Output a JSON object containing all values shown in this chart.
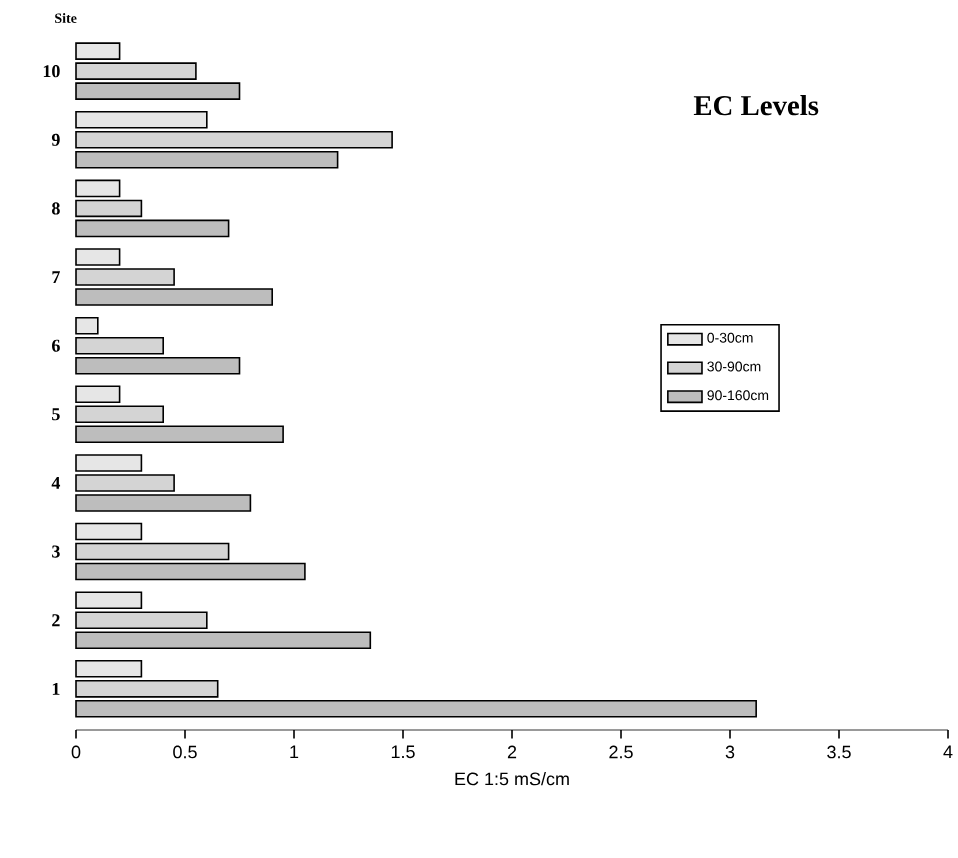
{
  "chart_data": {
    "type": "bar",
    "orientation": "horizontal",
    "title": "EC Levels",
    "xlabel": "EC 1:5 mS/cm",
    "ylabel": "Site",
    "categories": [
      "10",
      "9",
      "8",
      "7",
      "6",
      "5",
      "4",
      "3",
      "2",
      "1"
    ],
    "series": [
      {
        "name": "0-30cm",
        "color": "#e6e6e6",
        "values": [
          0.2,
          0.6,
          0.2,
          0.2,
          0.1,
          0.2,
          0.3,
          0.3,
          0.3,
          0.3
        ]
      },
      {
        "name": "30-90cm",
        "color": "#d4d4d4",
        "values": [
          0.55,
          1.45,
          0.3,
          0.45,
          0.4,
          0.4,
          0.45,
          0.7,
          0.6,
          0.65
        ]
      },
      {
        "name": "90-160cm",
        "color": "#bdbdbd",
        "values": [
          0.75,
          1.2,
          0.7,
          0.9,
          0.75,
          0.95,
          0.8,
          1.05,
          1.35,
          3.12
        ]
      }
    ],
    "xlim": [
      0,
      4
    ],
    "xticks": [
      0,
      0.5,
      1,
      1.5,
      2,
      2.5,
      3,
      3.5,
      4
    ],
    "legend": "right",
    "grid": false
  }
}
